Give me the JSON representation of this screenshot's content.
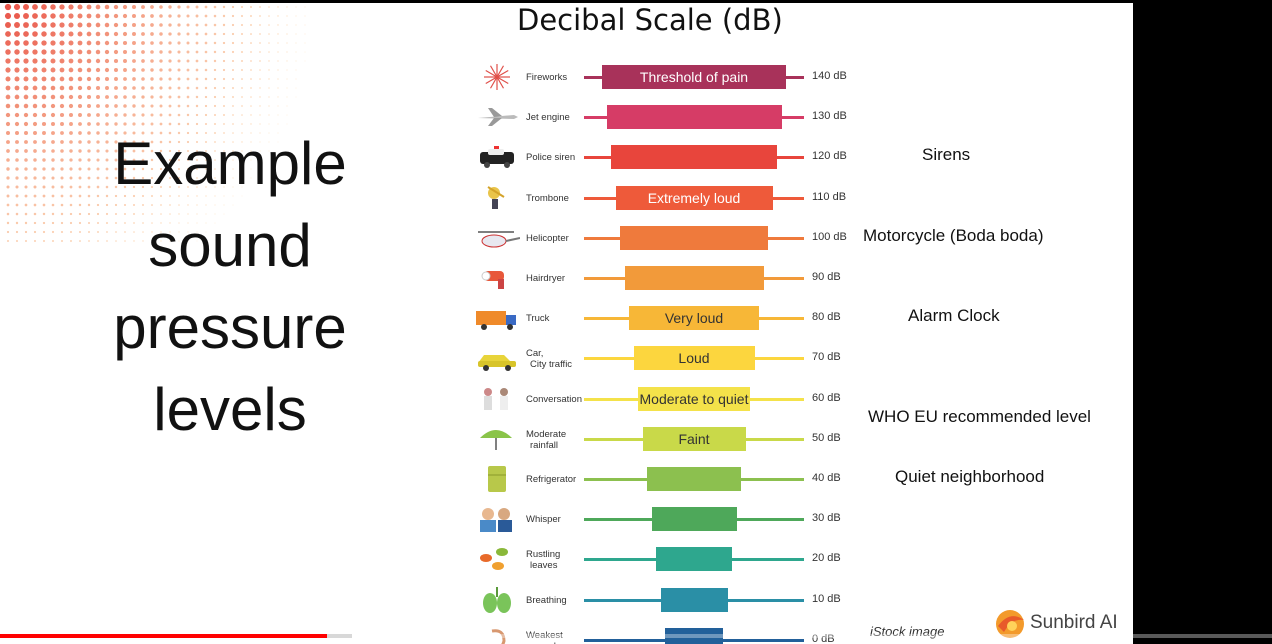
{
  "slide": {
    "left_title_lines": [
      "Example",
      "sound",
      "pressure",
      "levels"
    ],
    "chart_title": "Decibal Scale (dB)",
    "credit": "iStock image",
    "brand": "Sunbird AI"
  },
  "chart_data": {
    "type": "bar",
    "title": "Decibal Scale (dB)",
    "unit": "dB",
    "rows": [
      {
        "source": "Fireworks",
        "db": 140,
        "db_label": "140 dB",
        "band": "Threshold of pain",
        "color": "#a8325a",
        "icon": "fireworks-icon"
      },
      {
        "source": "Jet engine",
        "db": 130,
        "db_label": "130 dB",
        "band": "",
        "color": "#d63c66",
        "icon": "jet-icon"
      },
      {
        "source": "Police siren",
        "db": 120,
        "db_label": "120 dB",
        "band": "",
        "color": "#e8453c",
        "icon": "police-car-icon"
      },
      {
        "source": "Trombone",
        "db": 110,
        "db_label": "110 dB",
        "band": "Extremely loud",
        "color": "#ee5a3a",
        "icon": "trombone-icon"
      },
      {
        "source": "Helicopter",
        "db": 100,
        "db_label": "100 dB",
        "band": "",
        "color": "#ef7a3c",
        "icon": "helicopter-icon"
      },
      {
        "source": "Hairdryer",
        "db": 90,
        "db_label": "90 dB",
        "band": "",
        "color": "#f29a3a",
        "icon": "hairdryer-icon"
      },
      {
        "source": "Truck",
        "db": 80,
        "db_label": "80 dB",
        "band": "Very loud",
        "color": "#f7b737",
        "icon": "truck-icon"
      },
      {
        "source": "Car,\nCity traffic",
        "db": 70,
        "db_label": "70 dB",
        "band": "Loud",
        "color": "#fcd63e",
        "icon": "car-icon"
      },
      {
        "source": "Conversation",
        "db": 60,
        "db_label": "60 dB",
        "band": "Moderate to quiet",
        "color": "#f4e24a",
        "icon": "conversation-icon"
      },
      {
        "source": "Moderate\nrainfall",
        "db": 50,
        "db_label": "50 dB",
        "band": "Faint",
        "color": "#c9d949",
        "icon": "umbrella-icon"
      },
      {
        "source": "Refrigerator",
        "db": 40,
        "db_label": "40 dB",
        "band": "",
        "color": "#8cc04f",
        "icon": "refrigerator-icon"
      },
      {
        "source": "Whisper",
        "db": 30,
        "db_label": "30 dB",
        "band": "",
        "color": "#4ea85a",
        "icon": "whisper-icon"
      },
      {
        "source": "Rustling\nleaves",
        "db": 20,
        "db_label": "20 dB",
        "band": "",
        "color": "#2ea78e",
        "icon": "leaves-icon"
      },
      {
        "source": "Breathing",
        "db": 10,
        "db_label": "10 dB",
        "band": "",
        "color": "#2a8fa6",
        "icon": "lungs-icon"
      },
      {
        "source": "Weakest\nsound",
        "db": 0,
        "db_label": "0 dB",
        "band": "",
        "color": "#22609a",
        "icon": "ear-icon"
      }
    ],
    "examples": [
      {
        "text": "Sirens",
        "db": 120
      },
      {
        "text": "Motorcycle (Boda boda)",
        "db": 100
      },
      {
        "text": "Alarm Clock",
        "db": 80
      },
      {
        "text": "WHO EU recommended level",
        "db": 55
      },
      {
        "text": "Quiet neighborhood",
        "db": 40
      }
    ]
  },
  "player": {
    "progress": 0.257,
    "buffered": 0.277
  }
}
